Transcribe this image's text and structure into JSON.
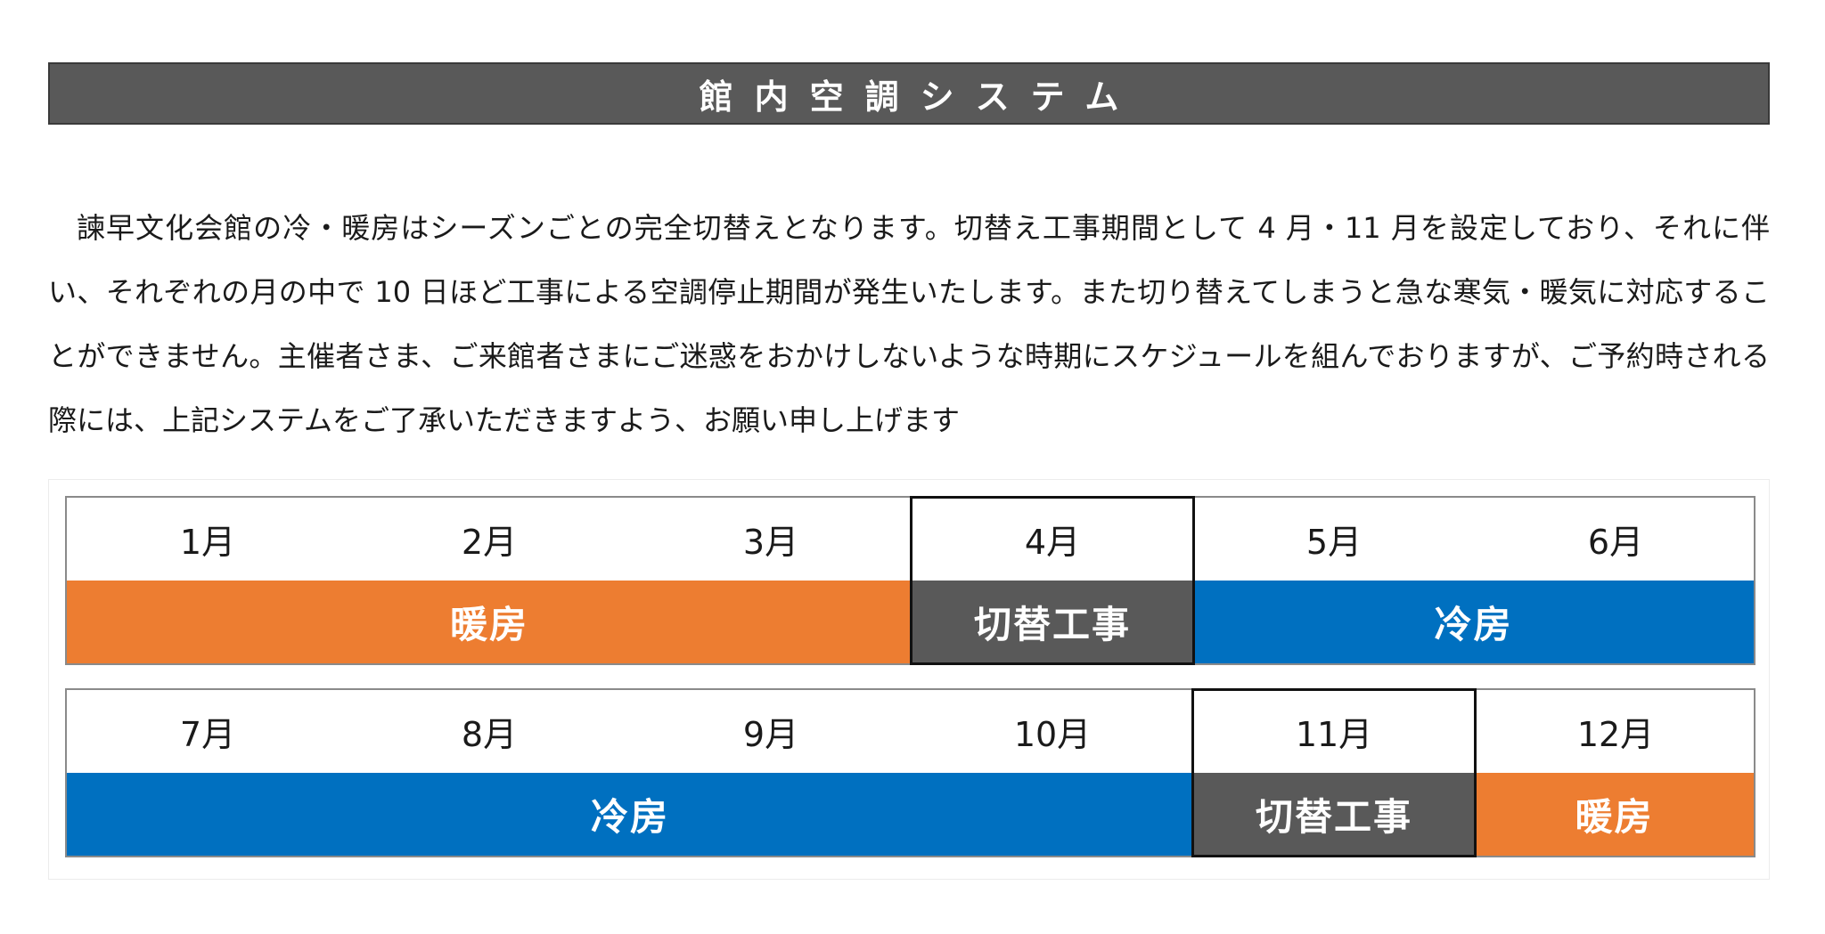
{
  "title": "館内空調システム",
  "paragraph": "諫早文化会館の冷・暖房はシーズンごとの完全切替えとなります。切替え工事期間として 4 月・11 月を設定しており、それに伴い、それぞれの月の中で 10 日ほど工事による空調停止期間が発生いたします。また切り替えてしまうと急な寒気・暖気に対応することができません。主催者さま、ご来館者さまにご迷惑をおかけしないような時期にスケジュールを組んでおりますが、ご予約時される際には、上記システムをご了承いただきますよう、お願い申し上げます",
  "colors": {
    "heating": "#ed7d31",
    "cooling": "#0070c0",
    "switchover": "#595959",
    "title_bar": "#595959"
  },
  "schedule": {
    "row1": {
      "months": [
        "1月",
        "2月",
        "3月",
        "4月",
        "5月",
        "6月"
      ],
      "bands": [
        {
          "label": "暖房",
          "kind": "heating",
          "from_month": 1,
          "to_month": 3
        },
        {
          "label": "切替工事",
          "kind": "switchover",
          "from_month": 4,
          "to_month": 4
        },
        {
          "label": "冷房",
          "kind": "cooling",
          "from_month": 5,
          "to_month": 6
        }
      ]
    },
    "row2": {
      "months": [
        "7月",
        "8月",
        "9月",
        "10月",
        "11月",
        "12月"
      ],
      "bands": [
        {
          "label": "冷房",
          "kind": "cooling",
          "from_month": 7,
          "to_month": 10
        },
        {
          "label": "切替工事",
          "kind": "switchover",
          "from_month": 11,
          "to_month": 11
        },
        {
          "label": "暖房",
          "kind": "heating",
          "from_month": 12,
          "to_month": 12
        }
      ]
    }
  }
}
